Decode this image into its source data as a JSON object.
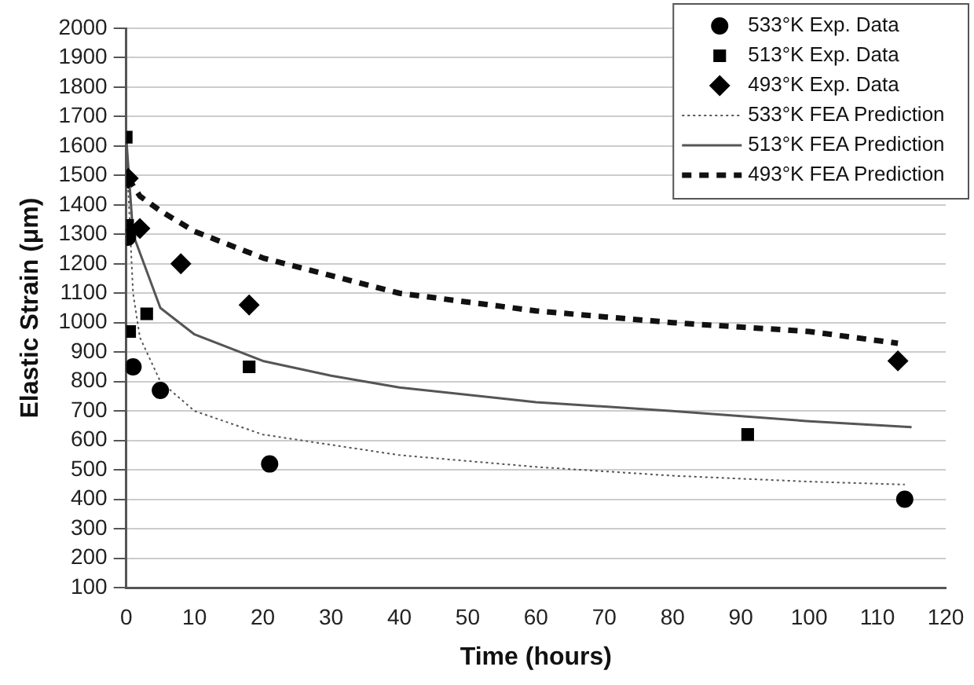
{
  "chart_data": {
    "type": "scatter",
    "xlabel": "Time (hours)",
    "ylabel": "Elastic Strain (μm)",
    "xlim": [
      0,
      120
    ],
    "xticks": [
      0,
      10,
      20,
      30,
      40,
      50,
      60,
      70,
      80,
      90,
      100,
      110,
      120
    ],
    "ylim": [
      100,
      2000
    ],
    "yticks": [
      100,
      200,
      300,
      400,
      500,
      600,
      700,
      800,
      900,
      1000,
      1100,
      1200,
      1300,
      1400,
      1500,
      1600,
      1700,
      1800,
      1900,
      2000
    ],
    "grid": "y",
    "legend": "top right",
    "series": [
      {
        "name": "533°K Exp. Data",
        "type": "scatter",
        "marker": "circle",
        "color": "#000000",
        "x": [
          0.2,
          1,
          5,
          21,
          114
        ],
        "values": [
          1290,
          850,
          770,
          520,
          400
        ]
      },
      {
        "name": "513°K Exp. Data",
        "type": "scatter",
        "marker": "square",
        "color": "#000000",
        "x": [
          0,
          0.2,
          0.5,
          3,
          18,
          91
        ],
        "values": [
          1630,
          1330,
          970,
          1030,
          850,
          620
        ]
      },
      {
        "name": "493°K Exp. Data",
        "type": "scatter",
        "marker": "diamond",
        "color": "#000000",
        "x": [
          0.3,
          2,
          8,
          18,
          113
        ],
        "values": [
          1490,
          1320,
          1200,
          1060,
          870
        ]
      },
      {
        "name": "533°K FEA Prediction",
        "type": "line",
        "line_style": "dotted",
        "marker": "none",
        "color": "#555555",
        "x": [
          0,
          1,
          2,
          5,
          10,
          20,
          40,
          60,
          80,
          100,
          114
        ],
        "values": [
          1600,
          1100,
          950,
          800,
          700,
          620,
          550,
          510,
          480,
          460,
          450
        ]
      },
      {
        "name": "513°K FEA Prediction",
        "type": "line",
        "line_style": "solid",
        "marker": "none",
        "color": "#555555",
        "x": [
          0,
          1,
          5,
          10,
          20,
          30,
          40,
          60,
          80,
          100,
          115
        ],
        "values": [
          1630,
          1300,
          1050,
          960,
          870,
          820,
          780,
          730,
          700,
          665,
          645
        ]
      },
      {
        "name": "493°K FEA Prediction",
        "type": "line",
        "line_style": "dashed",
        "marker": "none",
        "color": "#111111",
        "x": [
          0.3,
          2,
          5,
          10,
          20,
          40,
          60,
          80,
          100,
          113
        ],
        "values": [
          1490,
          1430,
          1380,
          1310,
          1220,
          1100,
          1040,
          1000,
          970,
          930
        ]
      }
    ]
  }
}
